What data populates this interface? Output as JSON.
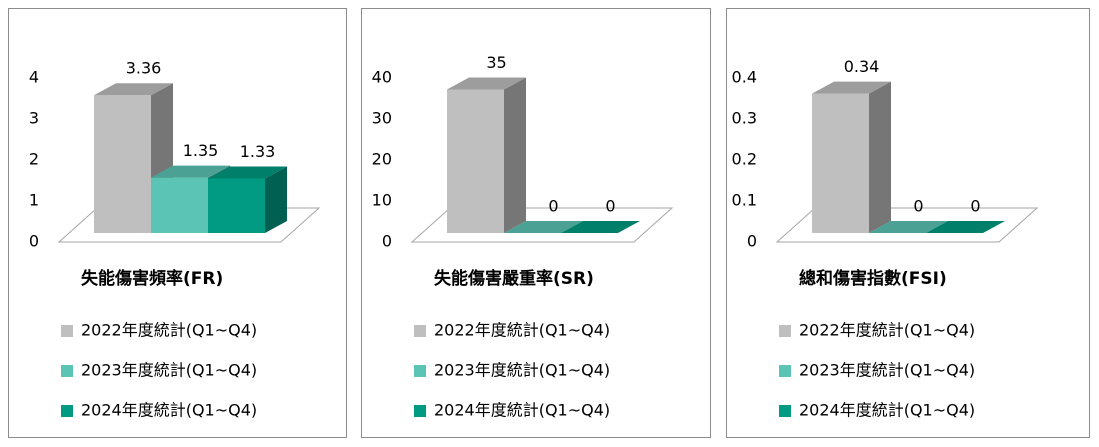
{
  "chart_data": [
    {
      "type": "bar",
      "title": "失能傷害頻率(FR)",
      "ylim": [
        0,
        4
      ],
      "yticks": [
        0,
        1,
        2,
        3,
        4
      ],
      "series": [
        {
          "name": "2022年度統計(Q1~Q4)",
          "color": "#bfbfbf",
          "values": [
            3.36
          ]
        },
        {
          "name": "2023年度統計(Q1~Q4)",
          "color": "#5cc4b4",
          "values": [
            1.35
          ]
        },
        {
          "name": "2024年度統計(Q1~Q4)",
          "color": "#009b82",
          "values": [
            1.33
          ]
        }
      ]
    },
    {
      "type": "bar",
      "title": "失能傷害嚴重率(SR)",
      "ylim": [
        0,
        40
      ],
      "yticks": [
        0,
        10,
        20,
        30,
        40
      ],
      "series": [
        {
          "name": "2022年度統計(Q1~Q4)",
          "color": "#bfbfbf",
          "values": [
            35
          ]
        },
        {
          "name": "2023年度統計(Q1~Q4)",
          "color": "#5cc4b4",
          "values": [
            0
          ]
        },
        {
          "name": "2024年度統計(Q1~Q4)",
          "color": "#009b82",
          "values": [
            0
          ]
        }
      ]
    },
    {
      "type": "bar",
      "title": "總和傷害指數(FSI)",
      "ylim": [
        0,
        0.4
      ],
      "yticks": [
        0,
        0.1,
        0.2,
        0.3,
        0.4
      ],
      "series": [
        {
          "name": "2022年度統計(Q1~Q4)",
          "color": "#bfbfbf",
          "values": [
            0.34
          ]
        },
        {
          "name": "2023年度統計(Q1~Q4)",
          "color": "#5cc4b4",
          "values": [
            0
          ]
        },
        {
          "name": "2024年度統計(Q1~Q4)",
          "color": "#009b82",
          "values": [
            0
          ]
        }
      ]
    }
  ]
}
